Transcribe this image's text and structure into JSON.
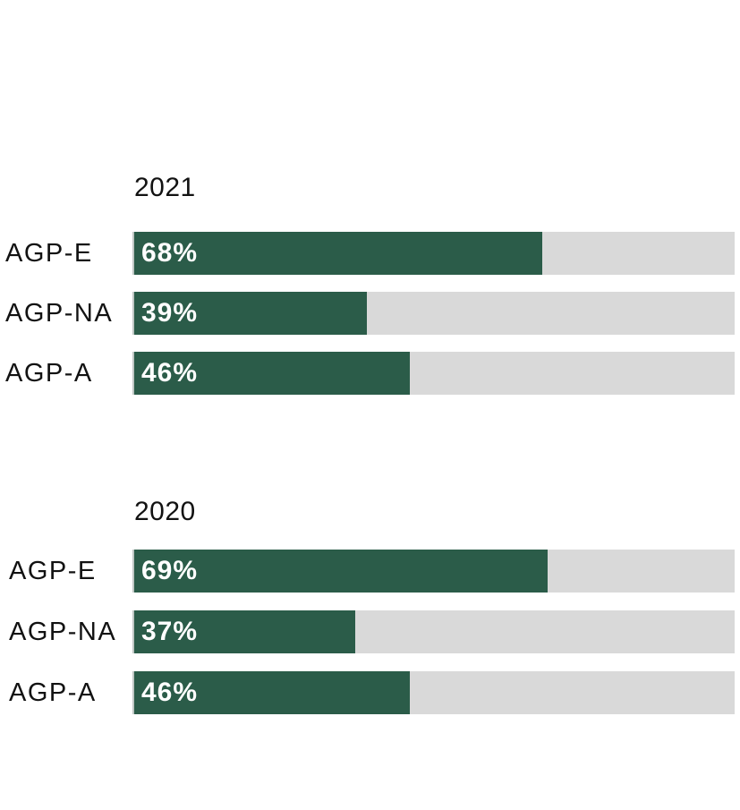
{
  "page": {
    "background": "#ffffff"
  },
  "colors": {
    "bar_fill": "#2B5C49",
    "bar_track": "#D9D9D9",
    "label_text": "#121212",
    "value_text": "#FFFFFF"
  },
  "chart_data": [
    {
      "type": "bar",
      "orientation": "horizontal",
      "title": "2021",
      "categories": [
        "AGP-E",
        "AGP-NA",
        "AGP-A"
      ],
      "values": [
        68,
        39,
        46
      ],
      "value_labels": [
        "68%",
        "39%",
        "46%"
      ],
      "unit": "%",
      "value_range": [
        0,
        100
      ],
      "grid": false,
      "legend": false,
      "rows": [
        {
          "category": "AGP-E",
          "value": 68,
          "label": "68%"
        },
        {
          "category": "AGP-NA",
          "value": 39,
          "label": "39%"
        },
        {
          "category": "AGP-A",
          "value": 46,
          "label": "46%"
        }
      ]
    },
    {
      "type": "bar",
      "orientation": "horizontal",
      "title": "2020",
      "categories": [
        "AGP-E",
        "AGP-NA",
        "AGP-A"
      ],
      "values": [
        69,
        37,
        46
      ],
      "value_labels": [
        "69%",
        "37%",
        "46%"
      ],
      "unit": "%",
      "value_range": [
        0,
        100
      ],
      "grid": false,
      "legend": false,
      "rows": [
        {
          "category": "AGP-E",
          "value": 69,
          "label": "69%"
        },
        {
          "category": "AGP-NA",
          "value": 37,
          "label": "37%"
        },
        {
          "category": "AGP-A",
          "value": 46,
          "label": "46%"
        }
      ]
    }
  ]
}
